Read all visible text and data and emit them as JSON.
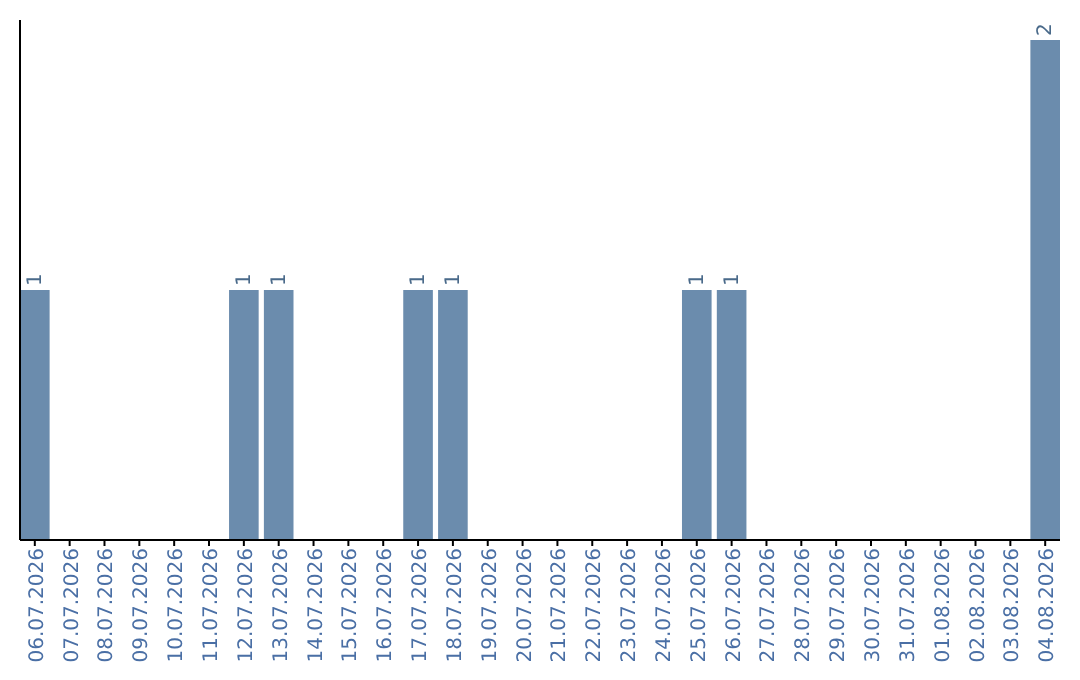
{
  "chart_data": {
    "type": "bar",
    "categories": [
      "06.07.2026",
      "07.07.2026",
      "08.07.2026",
      "09.07.2026",
      "10.07.2026",
      "11.07.2026",
      "12.07.2026",
      "13.07.2026",
      "14.07.2026",
      "15.07.2026",
      "16.07.2026",
      "17.07.2026",
      "18.07.2026",
      "19.07.2026",
      "20.07.2026",
      "21.07.2026",
      "22.07.2026",
      "23.07.2026",
      "24.07.2026",
      "25.07.2026",
      "26.07.2026",
      "27.07.2026",
      "28.07.2026",
      "29.07.2026",
      "30.07.2026",
      "31.07.2026",
      "01.08.2026",
      "02.08.2026",
      "03.08.2026",
      "04.08.2026"
    ],
    "values": [
      1,
      0,
      0,
      0,
      0,
      0,
      1,
      1,
      0,
      0,
      0,
      1,
      1,
      0,
      0,
      0,
      0,
      0,
      0,
      1,
      1,
      0,
      0,
      0,
      0,
      0,
      0,
      0,
      0,
      2
    ],
    "value_labels": [
      "1",
      null,
      null,
      null,
      null,
      null,
      "1",
      "1",
      null,
      null,
      null,
      "1",
      "1",
      null,
      null,
      null,
      null,
      null,
      null,
      "1",
      "1",
      null,
      null,
      null,
      null,
      null,
      null,
      null,
      null,
      "2"
    ],
    "color": "#6b8cad"
  }
}
